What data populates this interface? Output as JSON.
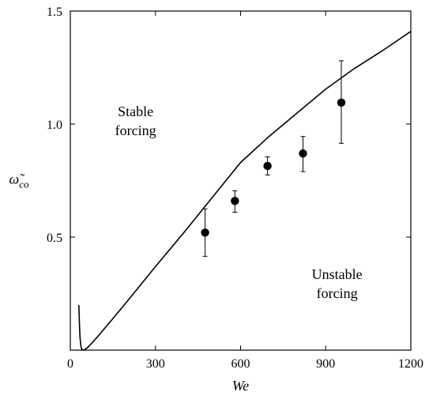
{
  "chart_data": {
    "type": "scatter",
    "xlabel": "We",
    "ylabel": "ω̃",
    "ylabel_sub": "co",
    "xlim": [
      0,
      1200
    ],
    "ylim": [
      0,
      1.5
    ],
    "xticks": [
      0,
      300,
      600,
      900,
      1200
    ],
    "xtick_labels": [
      "0",
      "300",
      "600",
      "900",
      "1200"
    ],
    "yticks": [
      0.5,
      1.0,
      1.5
    ],
    "ytick_labels": [
      "0.5",
      "1.0",
      "1.5"
    ],
    "grid": false,
    "annotations": [
      {
        "lines": [
          "Stable",
          "forcing"
        ],
        "x": 230,
        "y": 1.0
      },
      {
        "lines": [
          "Unstable",
          "forcing"
        ],
        "x": 940,
        "y": 0.28
      }
    ],
    "series": [
      {
        "type": "scatter",
        "x": [
          475,
          580,
          695,
          820,
          955
        ],
        "y": [
          0.52,
          0.66,
          0.815,
          0.87,
          1.095
        ],
        "err_low": [
          0.415,
          0.61,
          0.775,
          0.79,
          0.915
        ],
        "err_high": [
          0.625,
          0.705,
          0.855,
          0.945,
          1.28
        ]
      },
      {
        "type": "line",
        "x": [
          30,
          32,
          34,
          37,
          40,
          44,
          50,
          60,
          75,
          100,
          150,
          200,
          300,
          400,
          500,
          600,
          700,
          800,
          900,
          1000,
          1100,
          1200
        ],
        "y": [
          0.2,
          0.12,
          0.06,
          0.02,
          0.005,
          0.0,
          0.002,
          0.01,
          0.03,
          0.065,
          0.14,
          0.215,
          0.37,
          0.52,
          0.675,
          0.83,
          0.945,
          1.05,
          1.155,
          1.245,
          1.325,
          1.41
        ]
      }
    ]
  }
}
